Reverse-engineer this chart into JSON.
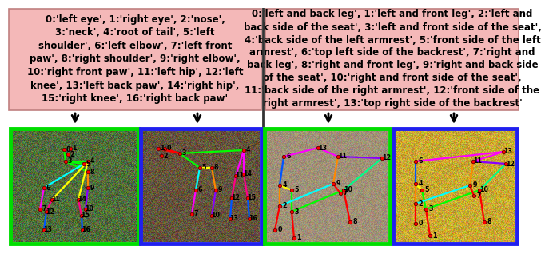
{
  "text_bg_color": "#f4b8b8",
  "text_edge_color": "#c08080",
  "divider_color": "#333333",
  "green_border": "#00dd00",
  "blue_border": "#2020ee",
  "text_fontsize": 8.5,
  "label_fontsize": 5.8,
  "left_text_lines": [
    "0:'left eye', 1:'right eye', 2:'nose',",
    "3:'neck', 4:'root of tail', 5:'left",
    "shoulder', 6:'left elbow', 7:'left front",
    "paw', 8:'right shoulder', 9:'right elbow',",
    "10:'right front paw', 11:'left hip', 12:'left",
    "knee', 13:'left back paw', 14:'right hip',",
    "15:'right knee', 16:'right back paw'"
  ],
  "right_text_lines": [
    "0:'left and back leg', 1:'left and front leg', 2:'left and",
    "back side of the seat', 3:'left and front side of the seat',",
    "4:'back side of the left armrest', 5:'front side of the left",
    "armrest', 6:'top left side of the backrest', 7:'right and",
    "back leg', 8:'right and front leg', 9:'right and back side",
    "of the seat', 10:'right and front side of the seat',",
    "11:'back side of the right armrest', 12:'front side of the",
    "right armrest', 13:'top right side of the backrest'"
  ]
}
